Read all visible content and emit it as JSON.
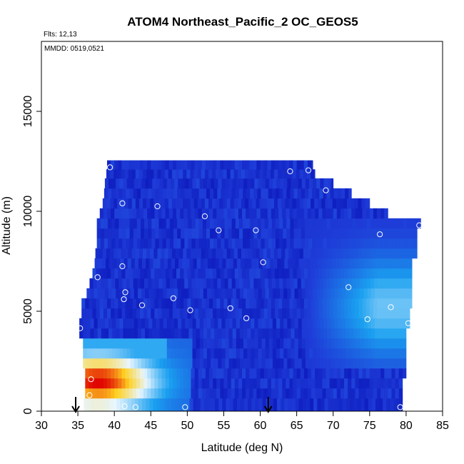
{
  "chart_data": {
    "type": "heatmap",
    "title": "ATOM4 Northeast_Pacific_2 OC_GEOS5",
    "annotations": {
      "flights": "Flts: 12,13",
      "dates": "MMDD: 0519,0521"
    },
    "xlabel": "Latitude (deg N)",
    "ylabel": "Altitude (m)",
    "xlim": [
      30,
      85
    ],
    "ylim": [
      0,
      18500
    ],
    "x_ticks": [
      30,
      35,
      40,
      45,
      50,
      55,
      60,
      65,
      70,
      75,
      80,
      85
    ],
    "x_tick_labels": [
      "30",
      "35",
      "40",
      "45",
      "50",
      "55",
      "60",
      "65",
      "70",
      "75",
      "80",
      "85"
    ],
    "y_ticks": [
      0,
      5000,
      10000,
      15000
    ],
    "y_tick_labels": [
      "0",
      "5000",
      "10000",
      "15000"
    ],
    "grid": false,
    "colormap": [
      "#0000a8",
      "#1e3cd8",
      "#1aa0f0",
      "#e8f6ff",
      "#ffd020",
      "#e00000"
    ],
    "curtain_rows": [
      {
        "alt": 400,
        "lat_min": 35.8,
        "lat_max": 79.5
      },
      {
        "alt": 900,
        "lat_min": 36.0,
        "lat_max": 79.5
      },
      {
        "alt": 1400,
        "lat_min": 36.0,
        "lat_max": 79.5
      },
      {
        "alt": 1900,
        "lat_min": 36.0,
        "lat_max": 80.0
      },
      {
        "alt": 2400,
        "lat_min": 35.7,
        "lat_max": 80.0
      },
      {
        "alt": 2900,
        "lat_min": 35.7,
        "lat_max": 80.0
      },
      {
        "alt": 3400,
        "lat_min": 35.7,
        "lat_max": 80.0
      },
      {
        "alt": 3900,
        "lat_min": 35.2,
        "lat_max": 80.0
      },
      {
        "alt": 4400,
        "lat_min": 35.2,
        "lat_max": 80.5
      },
      {
        "alt": 4900,
        "lat_min": 35.5,
        "lat_max": 80.5
      },
      {
        "alt": 5400,
        "lat_min": 35.5,
        "lat_max": 80.8
      },
      {
        "alt": 5900,
        "lat_min": 36.2,
        "lat_max": 80.8
      },
      {
        "alt": 6400,
        "lat_min": 36.6,
        "lat_max": 80.8
      },
      {
        "alt": 6900,
        "lat_min": 37.0,
        "lat_max": 80.8
      },
      {
        "alt": 7400,
        "lat_min": 37.3,
        "lat_max": 80.8
      },
      {
        "alt": 7900,
        "lat_min": 37.4,
        "lat_max": 81.5
      },
      {
        "alt": 8400,
        "lat_min": 37.6,
        "lat_max": 81.5
      },
      {
        "alt": 8900,
        "lat_min": 37.6,
        "lat_max": 81.5
      },
      {
        "alt": 9400,
        "lat_min": 37.6,
        "lat_max": 82.0
      },
      {
        "alt": 9900,
        "lat_min": 38.0,
        "lat_max": 77.5
      },
      {
        "alt": 10400,
        "lat_min": 38.4,
        "lat_max": 75.0
      },
      {
        "alt": 10900,
        "lat_min": 38.6,
        "lat_max": 72.5
      },
      {
        "alt": 11400,
        "lat_min": 38.7,
        "lat_max": 70.0
      },
      {
        "alt": 11900,
        "lat_min": 38.9,
        "lat_max": 67.5
      },
      {
        "alt": 12300,
        "lat_min": 39.0,
        "lat_max": 67.2
      }
    ],
    "hotspot": {
      "lat_min": 36.5,
      "lat_max": 50.5,
      "alt_min": 0,
      "alt_max": 3800,
      "peak_lat": 37.7,
      "peak_alt": 1500
    },
    "plume": {
      "lat_start": 48.5,
      "alt_start": 0,
      "lat_end": 60.0,
      "alt_end": 6500
    },
    "series": [
      {
        "marker": "open circle",
        "x": [
          39.4,
          41.1,
          45.9,
          52.4,
          54.3,
          59.4,
          64.1,
          66.6,
          69.0,
          41.1,
          37.7,
          41.5,
          41.3,
          43.8,
          48.1,
          50.4,
          55.9,
          58.1,
          60.4,
          76.4,
          81.8,
          72.1,
          74.7,
          77.9,
          80.3,
          35.3,
          36.8,
          36.6,
          41.4,
          42.9,
          49.7,
          79.2
        ],
        "y": [
          12200,
          10400,
          10250,
          9750,
          9050,
          9050,
          12000,
          12050,
          11050,
          7250,
          6700,
          5950,
          5600,
          5300,
          5650,
          5050,
          5150,
          4650,
          7450,
          8850,
          9300,
          6200,
          4600,
          5200,
          4400,
          4150,
          1600,
          800,
          250,
          200,
          200,
          200
        ]
      }
    ],
    "arrows": [
      {
        "lat": 34.7,
        "direction": "down"
      },
      {
        "lat": 61.1,
        "direction": "down"
      }
    ]
  }
}
